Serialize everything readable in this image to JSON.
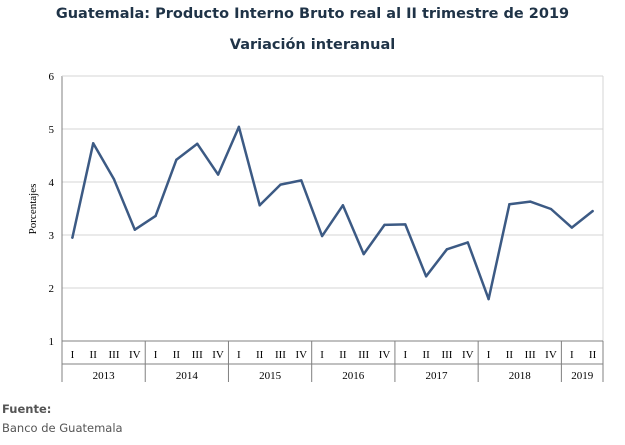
{
  "chart_data": {
    "type": "line",
    "title": "Guatemala: Producto Interno Bruto real al II trimestre de 2019",
    "subtitle": "Variación interanual",
    "ylabel": "Porcentajes",
    "xlabel": "",
    "ylim": [
      1,
      6
    ],
    "yticks": [
      "1",
      "2",
      "3",
      "4",
      "5",
      "6"
    ],
    "grid": true,
    "line_color": "#3c5a84",
    "quarters": [
      "I",
      "II",
      "III",
      "IV",
      "I",
      "II",
      "III",
      "IV",
      "I",
      "II",
      "III",
      "IV",
      "I",
      "II",
      "III",
      "IV",
      "I",
      "II",
      "III",
      "IV",
      "I",
      "II",
      "III",
      "IV",
      "I",
      "II"
    ],
    "years": [
      {
        "label": "2013",
        "quarters": 4
      },
      {
        "label": "2014",
        "quarters": 4
      },
      {
        "label": "2015",
        "quarters": 4
      },
      {
        "label": "2016",
        "quarters": 4
      },
      {
        "label": "2017",
        "quarters": 4
      },
      {
        "label": "2018",
        "quarters": 4
      },
      {
        "label": "2019",
        "quarters": 2
      }
    ],
    "values": [
      2.95,
      4.73,
      4.05,
      3.1,
      3.36,
      4.42,
      4.72,
      4.14,
      5.04,
      3.56,
      3.95,
      4.03,
      2.98,
      3.56,
      2.64,
      3.19,
      3.2,
      2.22,
      2.73,
      2.86,
      1.79,
      3.58,
      3.63,
      3.49,
      3.14,
      3.45
    ]
  },
  "footer": {
    "source_label": "Fuente:",
    "source_text": "Banco de Guatemala"
  }
}
